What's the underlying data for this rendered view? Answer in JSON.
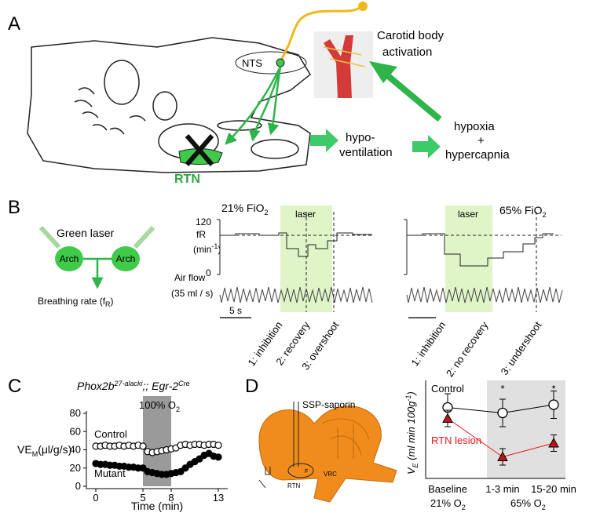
{
  "panels": {
    "a": {
      "label": "A",
      "nts": "NTS",
      "carotid": "Carotid body",
      "activation": "activation",
      "rtn": "RTN",
      "hypo": "hypo-",
      "ventilation": "ventilation",
      "hypoxia": "hypoxia",
      "plus": "+",
      "hypercapnia": "hypercapnia"
    },
    "b": {
      "label": "B",
      "green_laser": "Green laser",
      "arch": [
        "Arch",
        "Arch"
      ],
      "breathing": [
        "Breathing rate (f",
        "R",
        ")"
      ],
      "left": {
        "fio2": [
          "21% FiO",
          "2"
        ],
        "laser": "laser",
        "tick_top": "120",
        "tick_bottom": "0",
        "fr": "fR",
        "fr_unit": [
          "(min",
          "-1",
          ")"
        ],
        "airflow": "Air flow",
        "airflow_unit": "(35 ml / s)",
        "scale": "5 s",
        "phases": [
          "1: inhibition",
          "2: recovery",
          "3: overshoot"
        ]
      },
      "right": {
        "fio2": [
          "65% FiO",
          "2"
        ],
        "laser": "laser",
        "phases": [
          "1: inhibition",
          "2: no recovery",
          "3: undershoot"
        ]
      }
    },
    "c": {
      "label": "C"
    },
    "d": {
      "label": "D",
      "ssp": "SSP-saporin",
      "f": "F",
      "rtn": "RTN",
      "vrc": "VRC"
    }
  },
  "chart_data": [
    {
      "type": "line",
      "title": [
        "Phox2b",
        "27-alacki",
        ";; Egr-2",
        "Cre"
      ],
      "y_label": [
        "VE",
        "M",
        "(μl/g/s)"
      ],
      "x_label": "Time (min)",
      "band": [
        5,
        8
      ],
      "band_label": [
        "100% O",
        "2"
      ],
      "x": [
        0,
        0.5,
        1,
        1.5,
        2,
        2.5,
        3,
        3.5,
        4,
        4.5,
        5,
        5.5,
        6,
        6.5,
        7,
        7.5,
        8,
        8.5,
        9,
        9.5,
        10,
        10.5,
        11,
        11.5,
        12,
        12.5,
        13
      ],
      "series": [
        {
          "name": "Control",
          "color": "#000000",
          "marker": "open",
          "values": [
            44,
            44,
            45,
            44,
            44,
            45,
            44,
            45,
            44,
            45,
            44,
            38,
            37,
            38,
            39,
            40,
            41,
            42,
            45,
            46,
            45,
            46,
            46,
            45,
            46,
            46,
            45
          ]
        },
        {
          "name": "Mutant",
          "color": "#000000",
          "marker": "filled",
          "values": [
            25,
            24,
            24,
            23,
            23,
            22,
            22,
            21,
            21,
            20,
            20,
            16,
            15,
            14,
            13,
            13,
            14,
            15,
            16,
            20,
            24,
            27,
            30,
            34,
            36,
            33,
            32
          ]
        }
      ],
      "xlim": [
        -1,
        14
      ],
      "ylim": [
        0,
        80
      ],
      "xticks": [
        0,
        5,
        8,
        13
      ],
      "yticks": [
        0,
        20,
        40,
        60,
        80
      ]
    },
    {
      "type": "errorline",
      "y_label": [
        "V",
        "E",
        " (ml min 100g",
        "-1",
        ")"
      ],
      "categories": [
        "Baseline",
        "1-3 min",
        "15-20 min"
      ],
      "conditions": [
        [
          "21% O",
          "2"
        ],
        [
          "65% O",
          "2"
        ]
      ],
      "significance": [
        null,
        "*",
        "*"
      ],
      "series": [
        {
          "name": "Control",
          "color": "#000000",
          "marker": "circle",
          "values": [
            33,
            31,
            34
          ],
          "errors": [
            5,
            5,
            5
          ]
        },
        {
          "name": "RTN lesion",
          "color": "#e8141b",
          "marker": "triangle",
          "values": [
            29,
            15,
            20
          ],
          "errors": [
            3,
            3,
            3
          ]
        }
      ],
      "ylim": [
        10,
        40
      ]
    }
  ]
}
